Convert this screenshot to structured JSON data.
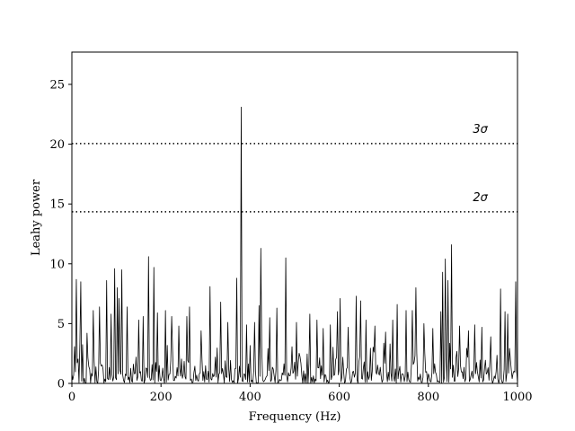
{
  "chart_data": {
    "type": "line",
    "title": "",
    "xlabel": "Frequency (Hz)",
    "ylabel": "Leahy power",
    "xlim": [
      0,
      1000
    ],
    "ylim": [
      0,
      27.7
    ],
    "xticks": [
      0,
      200,
      400,
      600,
      800,
      1000
    ],
    "yticks": [
      0,
      5,
      10,
      15,
      20,
      25
    ],
    "grid": false,
    "legend": "none",
    "line_color": "#000000",
    "thresholds": [
      {
        "label": "3σ",
        "value": 20.05
      },
      {
        "label": "2σ",
        "value": 14.35
      }
    ],
    "series": [
      {
        "noise_seed": 7,
        "noise_step_hz": 2,
        "noise_typical_max": 3.5,
        "peaks": [
          {
            "x": 10,
            "y": 8.7
          },
          {
            "x": 20,
            "y": 8.5
          },
          {
            "x": 35,
            "y": 4.2
          },
          {
            "x": 48,
            "y": 6.1
          },
          {
            "x": 62,
            "y": 6.4
          },
          {
            "x": 78,
            "y": 8.6
          },
          {
            "x": 88,
            "y": 5.8
          },
          {
            "x": 97,
            "y": 9.6
          },
          {
            "x": 102,
            "y": 8.0
          },
          {
            "x": 107,
            "y": 7.1
          },
          {
            "x": 112,
            "y": 9.5
          },
          {
            "x": 125,
            "y": 6.4
          },
          {
            "x": 150,
            "y": 5.3
          },
          {
            "x": 160,
            "y": 5.6
          },
          {
            "x": 173,
            "y": 10.6
          },
          {
            "x": 185,
            "y": 9.7
          },
          {
            "x": 192,
            "y": 5.9
          },
          {
            "x": 210,
            "y": 6.1
          },
          {
            "x": 225,
            "y": 5.6
          },
          {
            "x": 240,
            "y": 4.8
          },
          {
            "x": 258,
            "y": 5.6
          },
          {
            "x": 265,
            "y": 6.4
          },
          {
            "x": 290,
            "y": 4.4
          },
          {
            "x": 310,
            "y": 8.1
          },
          {
            "x": 335,
            "y": 6.8
          },
          {
            "x": 350,
            "y": 5.1
          },
          {
            "x": 370,
            "y": 8.8
          },
          {
            "x": 380,
            "y": 23.1
          },
          {
            "x": 392,
            "y": 4.9
          },
          {
            "x": 410,
            "y": 5.1
          },
          {
            "x": 420,
            "y": 6.5
          },
          {
            "x": 425,
            "y": 11.3
          },
          {
            "x": 445,
            "y": 5.5
          },
          {
            "x": 460,
            "y": 6.3
          },
          {
            "x": 480,
            "y": 10.5
          },
          {
            "x": 505,
            "y": 5.1
          },
          {
            "x": 535,
            "y": 5.8
          },
          {
            "x": 550,
            "y": 5.3
          },
          {
            "x": 565,
            "y": 4.6
          },
          {
            "x": 580,
            "y": 4.9
          },
          {
            "x": 597,
            "y": 6.0
          },
          {
            "x": 602,
            "y": 7.1
          },
          {
            "x": 620,
            "y": 4.7
          },
          {
            "x": 638,
            "y": 7.3
          },
          {
            "x": 648,
            "y": 6.9
          },
          {
            "x": 660,
            "y": 5.3
          },
          {
            "x": 680,
            "y": 4.8
          },
          {
            "x": 705,
            "y": 4.3
          },
          {
            "x": 720,
            "y": 5.3
          },
          {
            "x": 730,
            "y": 6.6
          },
          {
            "x": 750,
            "y": 6.1
          },
          {
            "x": 765,
            "y": 6.1
          },
          {
            "x": 772,
            "y": 8.0
          },
          {
            "x": 790,
            "y": 5.0
          },
          {
            "x": 810,
            "y": 4.6
          },
          {
            "x": 828,
            "y": 6.0
          },
          {
            "x": 833,
            "y": 9.3
          },
          {
            "x": 838,
            "y": 10.4
          },
          {
            "x": 845,
            "y": 8.6
          },
          {
            "x": 852,
            "y": 11.6
          },
          {
            "x": 870,
            "y": 4.8
          },
          {
            "x": 890,
            "y": 4.4
          },
          {
            "x": 905,
            "y": 4.9
          },
          {
            "x": 920,
            "y": 4.7
          },
          {
            "x": 940,
            "y": 3.9
          },
          {
            "x": 962,
            "y": 7.9
          },
          {
            "x": 972,
            "y": 6.0
          },
          {
            "x": 978,
            "y": 5.8
          },
          {
            "x": 997,
            "y": 8.5
          }
        ]
      }
    ]
  }
}
